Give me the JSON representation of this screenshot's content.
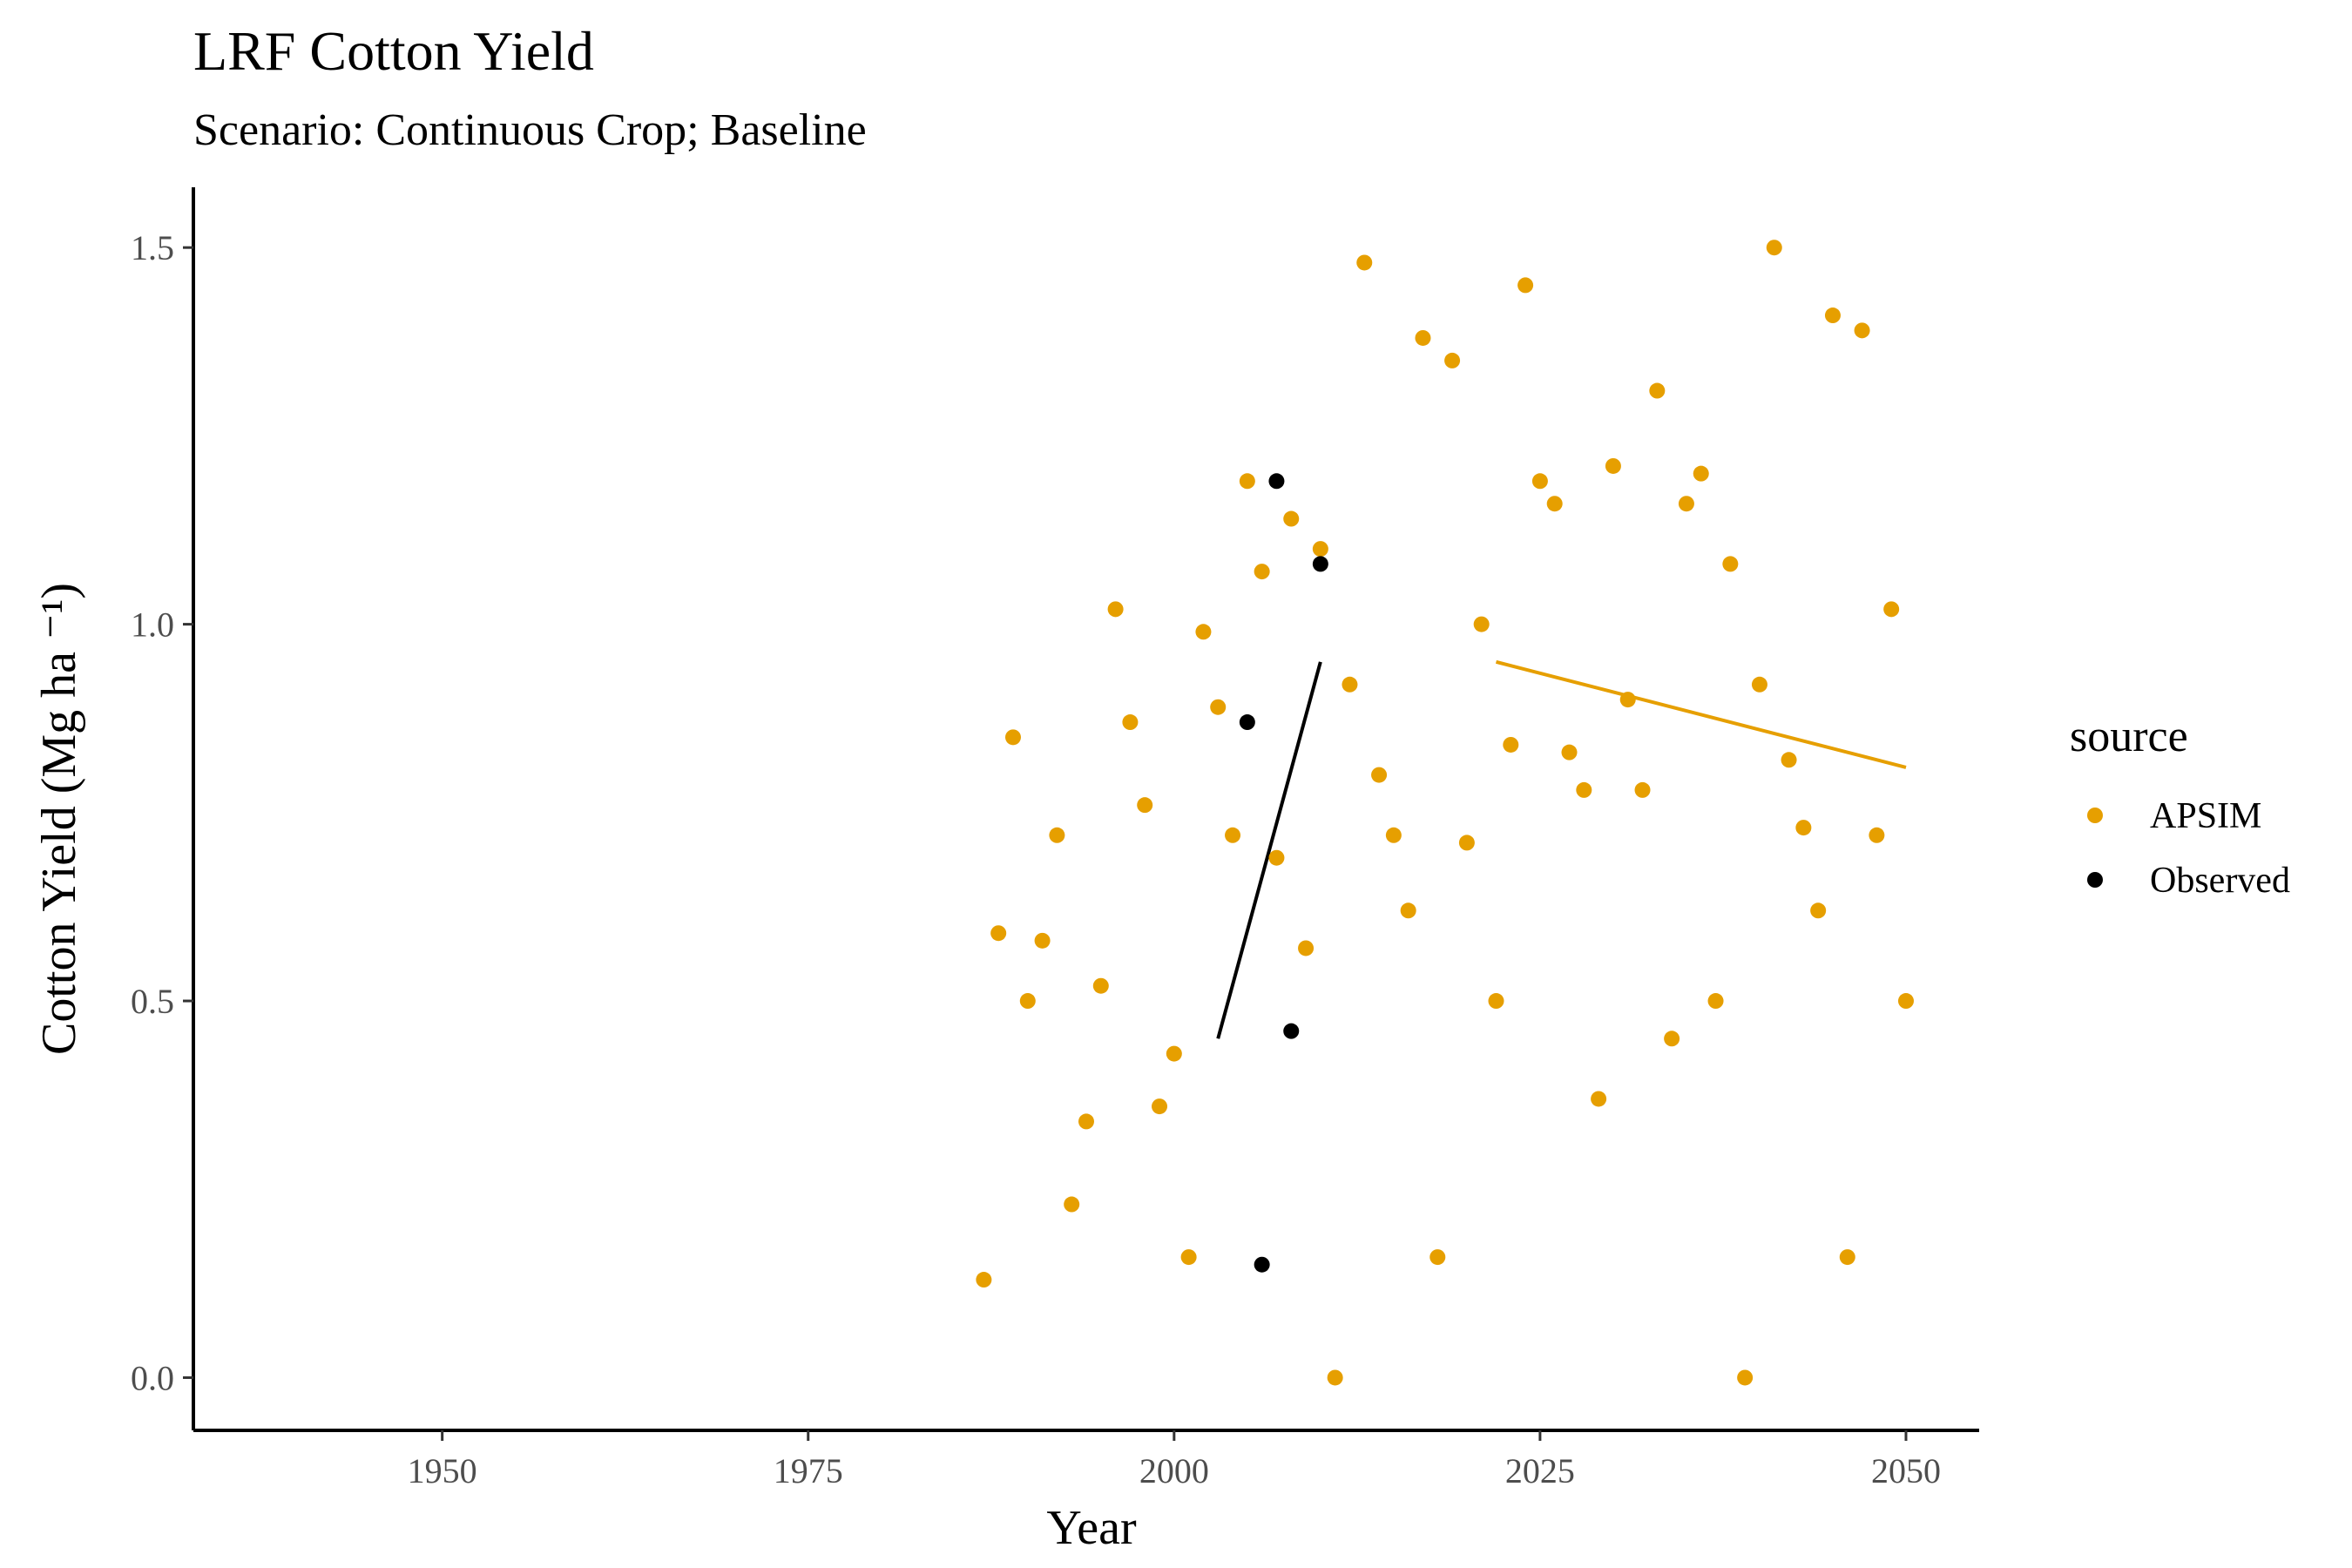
{
  "chart_data": {
    "type": "scatter",
    "title": "LRF Cotton Yield",
    "subtitle": "Scenario: Continuous Crop; Baseline",
    "xlabel": "Year",
    "ylabel": "Cotton Yield (Mg ha ⁻¹)",
    "xlim": [
      1933,
      2055
    ],
    "ylim": [
      -0.07,
      1.58
    ],
    "x_ticks": [
      1950,
      1975,
      2000,
      2025,
      2050
    ],
    "y_ticks": [
      0.0,
      0.5,
      1.0,
      1.5
    ],
    "x_tick_labels": [
      "1950",
      "1975",
      "2000",
      "2025",
      "2050"
    ],
    "y_tick_labels": [
      "0.0",
      "0.5",
      "1.0",
      "1.5"
    ],
    "grid": false,
    "legend": {
      "title": "source",
      "placement": "right",
      "entries": [
        {
          "label": "APSIM",
          "color": "#E69F00"
        },
        {
          "label": "Observed",
          "color": "#000000"
        }
      ]
    },
    "series": [
      {
        "name": "APSIM",
        "color": "#E69F00",
        "points": [
          [
            1987,
            0.13
          ],
          [
            1988,
            0.59
          ],
          [
            1989,
            0.85
          ],
          [
            1990,
            0.5
          ],
          [
            1991,
            0.58
          ],
          [
            1992,
            0.72
          ],
          [
            1993,
            0.23
          ],
          [
            1994,
            0.34
          ],
          [
            1995,
            0.52
          ],
          [
            1996,
            1.02
          ],
          [
            1997,
            0.87
          ],
          [
            1998,
            0.76
          ],
          [
            1999,
            0.36
          ],
          [
            2000,
            0.43
          ],
          [
            2001,
            0.16
          ],
          [
            2002,
            0.99
          ],
          [
            2003,
            0.89
          ],
          [
            2004,
            0.72
          ],
          [
            2005,
            1.19
          ],
          [
            2006,
            1.07
          ],
          [
            2007,
            0.69
          ],
          [
            2008,
            1.14
          ],
          [
            2009,
            0.57
          ],
          [
            2010,
            1.1
          ],
          [
            2011,
            0.0
          ],
          [
            2012,
            0.92
          ],
          [
            2013,
            1.48
          ],
          [
            2014,
            0.8
          ],
          [
            2015,
            0.72
          ],
          [
            2016,
            0.62
          ],
          [
            2017,
            1.38
          ],
          [
            2018,
            0.16
          ],
          [
            2019,
            1.35
          ],
          [
            2020,
            0.71
          ],
          [
            2021,
            1.0
          ],
          [
            2022,
            0.5
          ],
          [
            2023,
            0.84
          ],
          [
            2024,
            1.45
          ],
          [
            2025,
            1.19
          ],
          [
            2026,
            1.16
          ],
          [
            2027,
            0.83
          ],
          [
            2028,
            0.78
          ],
          [
            2029,
            0.37
          ],
          [
            2030,
            1.21
          ],
          [
            2031,
            0.9
          ],
          [
            2032,
            0.78
          ],
          [
            2033,
            1.31
          ],
          [
            2034,
            0.45
          ],
          [
            2035,
            1.16
          ],
          [
            2036,
            1.2
          ],
          [
            2037,
            0.5
          ],
          [
            2038,
            1.08
          ],
          [
            2039,
            0.0
          ],
          [
            2040,
            0.92
          ],
          [
            2041,
            1.5
          ],
          [
            2042,
            0.82
          ],
          [
            2043,
            0.73
          ],
          [
            2044,
            0.62
          ],
          [
            2045,
            1.41
          ],
          [
            2046,
            0.16
          ],
          [
            2047,
            1.39
          ],
          [
            2048,
            0.72
          ],
          [
            2049,
            1.02
          ],
          [
            2050,
            0.5
          ]
        ],
        "trend": [
          [
            2022,
            0.95
          ],
          [
            2050,
            0.81
          ]
        ]
      },
      {
        "name": "Observed",
        "color": "#000000",
        "points": [
          [
            2005,
            0.87
          ],
          [
            2006,
            0.15
          ],
          [
            2007,
            1.19
          ],
          [
            2008,
            0.46
          ],
          [
            2010,
            1.08
          ]
        ],
        "trend": [
          [
            2003,
            0.45
          ],
          [
            2010,
            0.95
          ]
        ]
      }
    ]
  }
}
